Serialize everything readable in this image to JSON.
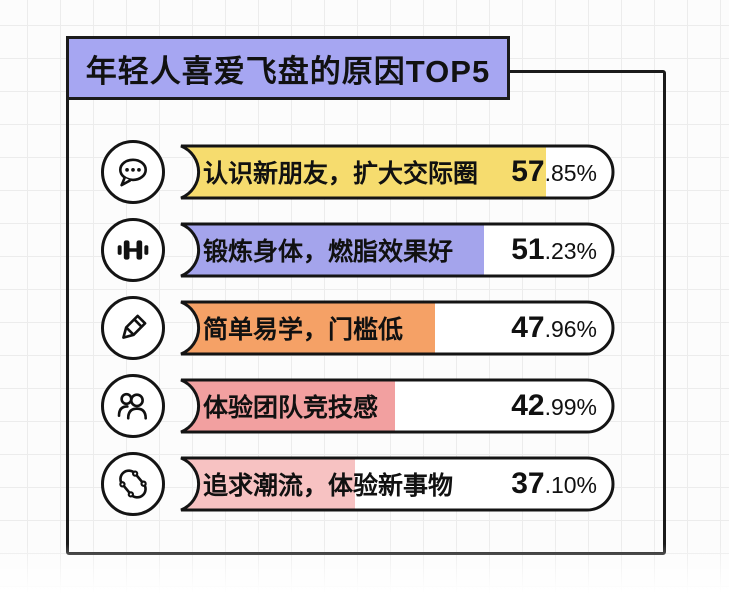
{
  "title": "年轻人喜爱飞盘的原因TOP5",
  "colors": {
    "title_bg": "#a6a6f2",
    "outline": "#1b1b1b",
    "yellow": "#f6dc6e",
    "purple": "#a4a4ec",
    "orange": "#f5a166",
    "pink": "#f2a0a0",
    "light_pink": "#f7c2c2"
  },
  "rows": [
    {
      "icon": "chat-bubble-icon",
      "label": "认识新朋友，扩大交际圈",
      "percent_bold": "57",
      "percent_rest": ".85%",
      "bar_color": "#f6dc6e",
      "bar_pct": 84
    },
    {
      "icon": "dumbbell-icon",
      "label": "锻炼身体，燃脂效果好",
      "percent_bold": "51",
      "percent_rest": ".23%",
      "bar_color": "#a4a4ec",
      "bar_pct": 70
    },
    {
      "icon": "pencil-icon",
      "label": "简单易学，门槛低",
      "percent_bold": "47",
      "percent_rest": ".96%",
      "bar_color": "#f5a166",
      "bar_pct": 59
    },
    {
      "icon": "people-icon",
      "label": "体验团队竞技感",
      "percent_bold": "42",
      "percent_rest": ".99%",
      "bar_color": "#f2a0a0",
      "bar_pct": 50
    },
    {
      "icon": "skateboard-icon",
      "label": "追求潮流，体验新事物",
      "percent_bold": "37",
      "percent_rest": ".10%",
      "bar_color": "#f7c2c2",
      "bar_pct": 41
    }
  ],
  "chart_data": {
    "type": "bar",
    "orientation": "horizontal",
    "title": "年轻人喜爱飞盘的原因TOP5",
    "categories": [
      "认识新朋友，扩大交际圈",
      "锻炼身体，燃脂效果好",
      "简单易学，门槛低",
      "体验团队竞技感",
      "追求潮流，体验新事物"
    ],
    "values": [
      57.85,
      51.23,
      47.96,
      42.99,
      37.1
    ],
    "unit": "%",
    "value_labels": [
      "57.85%",
      "51.23%",
      "47.96%",
      "42.99%",
      "37.10%"
    ],
    "bar_colors": [
      "#f6dc6e",
      "#a4a4ec",
      "#f5a166",
      "#f2a0a0",
      "#f7c2c2"
    ],
    "legend": "none",
    "grid": "faint background grid"
  }
}
